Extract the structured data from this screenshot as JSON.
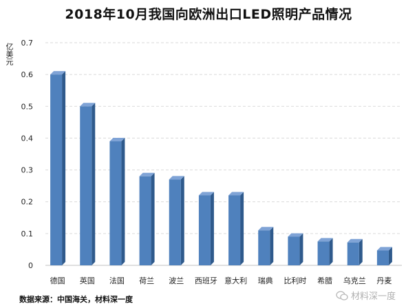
{
  "chart_data": {
    "type": "bar",
    "title": "2018年10月我国向欧洲出口LED照明产品情况",
    "ylabel": "亿美元",
    "xlabel": "",
    "categories": [
      "德国",
      "英国",
      "法国",
      "荷兰",
      "波兰",
      "西班牙",
      "意大利",
      "瑞典",
      "比利时",
      "希腊",
      "乌克兰",
      "丹麦"
    ],
    "values": [
      0.6,
      0.5,
      0.39,
      0.28,
      0.27,
      0.22,
      0.22,
      0.11,
      0.09,
      0.075,
      0.072,
      0.047
    ],
    "ylim": [
      0,
      0.7
    ],
    "yticks": [
      "0",
      "0.1",
      "0.2",
      "0.3",
      "0.4",
      "0.5",
      "0.6",
      "0.7"
    ],
    "grid": true,
    "bar_color": "#4f81bd",
    "bar_side_color": "#2f5a8c",
    "bar_top_color": "#7fa3d6"
  },
  "footer": {
    "source": "数据来源：中国海关，材料深一度",
    "watermark": "材料深一度"
  }
}
